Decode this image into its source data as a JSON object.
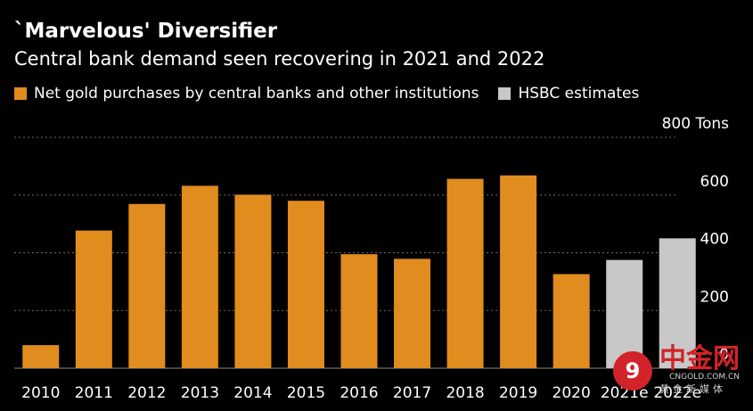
{
  "chart_data": {
    "type": "bar",
    "title": "`Marvelous' Diversifier",
    "subtitle": "Central bank demand seen recovering in 2021 and 2022",
    "categories": [
      "2010",
      "2011",
      "2012",
      "2013",
      "2014",
      "2015",
      "2016",
      "2017",
      "2018",
      "2019",
      "2020",
      "2021e",
      "2022e"
    ],
    "series": [
      {
        "name": "Net gold purchases by central banks and other institutions",
        "color": "#e08c1e",
        "values": [
          80,
          477,
          569,
          632,
          601,
          580,
          395,
          379,
          656,
          668,
          326,
          null,
          null
        ]
      },
      {
        "name": "HSBC estimates",
        "color": "#c8c8c8",
        "values": [
          null,
          null,
          null,
          null,
          null,
          null,
          null,
          null,
          null,
          null,
          null,
          375,
          450
        ]
      }
    ],
    "ylim": [
      0,
      800
    ],
    "yticks": [
      0,
      200,
      400,
      600,
      800
    ],
    "ytick_labels": [
      "0",
      "200",
      "400",
      "600",
      "800 Tons"
    ],
    "grid": true,
    "legend_position": "top-left"
  },
  "watermark": {
    "logo_glyph": "9",
    "name": "中金网",
    "url": "CNGOLD.COM.CN",
    "sub": "黄金新媒体"
  }
}
